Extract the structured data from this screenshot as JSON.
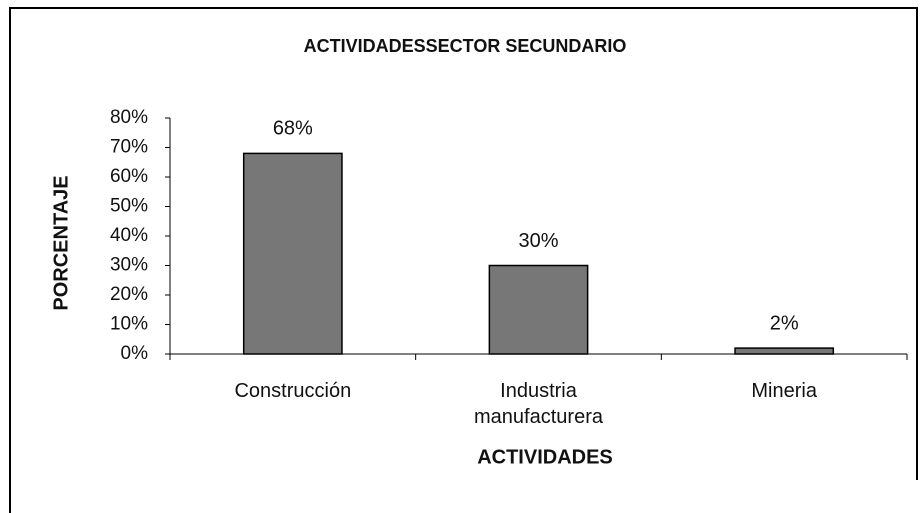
{
  "chart_data": {
    "type": "bar",
    "title": "ACTIVIDADESSECTOR SECUNDARIO",
    "x_label": "ACTIVIDADES",
    "y_label": "PORCENTAJE",
    "categories": [
      "Construcción",
      "Industria manufacturera",
      "Mineria"
    ],
    "values": [
      68,
      30,
      2
    ],
    "value_labels": [
      "68%",
      "30%",
      "2%"
    ],
    "color": "#777777",
    "ylim": [
      0,
      80
    ],
    "yticks": [
      {
        "value": 0,
        "label": "0%"
      },
      {
        "value": 10,
        "label": "10%"
      },
      {
        "value": 20,
        "label": "20%"
      },
      {
        "value": 30,
        "label": "30%"
      },
      {
        "value": 40,
        "label": "40%"
      },
      {
        "value": 50,
        "label": "50%"
      },
      {
        "value": 60,
        "label": "60%"
      },
      {
        "value": 70,
        "label": "70%"
      },
      {
        "value": 80,
        "label": "80%"
      }
    ],
    "grid": false
  }
}
